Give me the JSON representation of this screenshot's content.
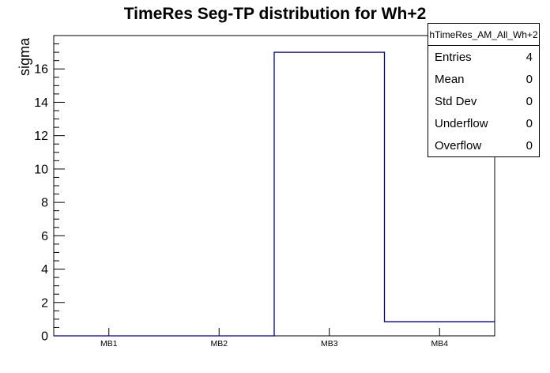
{
  "title": "TimeRes Seg-TP distribution for Wh+2",
  "colors": {
    "hist_line": "#000099",
    "frame": "#000000",
    "background": "#ffffff",
    "text": "#000000"
  },
  "stats_box": {
    "header": "hTimeRes_AM_All_Wh+2",
    "rows": [
      {
        "label": "Entries",
        "value": "4"
      },
      {
        "label": "Mean",
        "value": "0"
      },
      {
        "label": "Std Dev",
        "value": "0"
      },
      {
        "label": "Underflow",
        "value": "0"
      },
      {
        "label": "Overflow",
        "value": "0"
      }
    ]
  },
  "chart_data": {
    "type": "bar",
    "style": "root-step-histogram",
    "title": "TimeRes Seg-TP distribution for Wh+2",
    "categories": [
      "MB1",
      "MB2",
      "MB3",
      "MB4"
    ],
    "values": [
      0,
      0,
      17,
      0.85
    ],
    "xlabel": "",
    "ylabel": "sigma",
    "ylim": [
      0,
      18
    ],
    "y_major_ticks": [
      0,
      2,
      4,
      6,
      8,
      10,
      12,
      14,
      16
    ],
    "y_minor_tick_step": 0.5,
    "grid": false,
    "legend": false
  }
}
